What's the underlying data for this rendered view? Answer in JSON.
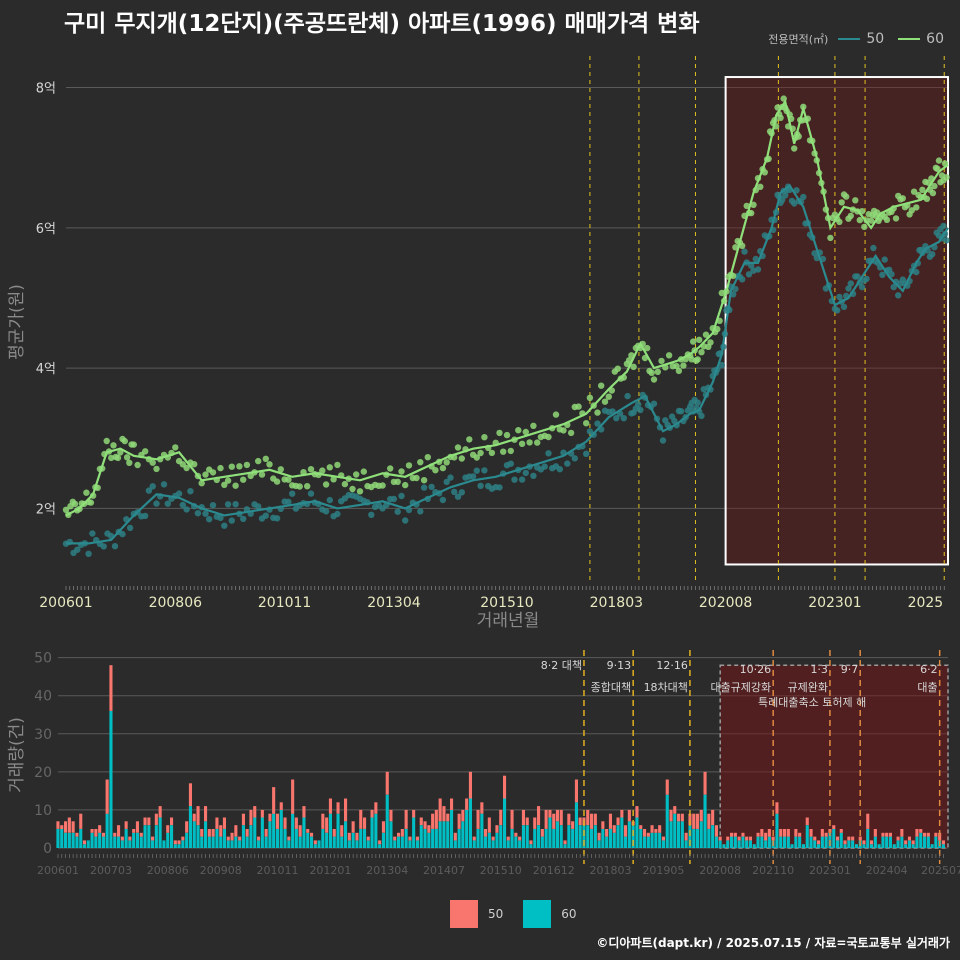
{
  "title": "구미 무지개(12단지)(주공뜨란체) 아파트(1996) 매매가격 변화",
  "legend": {
    "title": "전용면적(㎡)",
    "items": [
      {
        "label": "50",
        "color": "#2a8a8f"
      },
      {
        "label": "60",
        "color": "#8fe07a"
      }
    ]
  },
  "bar_legend": [
    {
      "label": "50",
      "color": "#f8766d"
    },
    {
      "label": "60",
      "color": "#00bfc4"
    }
  ],
  "footer": "©디아파트(dapt.kr) / 2025.07.15 / 자료=국토교통부 실거래가",
  "policies": [
    {
      "date": "2017.08",
      "label": "8·2 대책",
      "label2": ""
    },
    {
      "date": "2018.09",
      "label": "9·13",
      "label2": "종합대책"
    },
    {
      "date": "2019.12",
      "label": "12·16",
      "label2": "18차대책"
    },
    {
      "date": "2021.10",
      "label": "10·26",
      "label2": "대출규제강화"
    },
    {
      "date": "2023.01",
      "label": "1·3",
      "label2": "규제완화"
    },
    {
      "date": "2023.09",
      "label": "9·7",
      "label2": "특례대출축소 토허제 해"
    },
    {
      "date": "2025.06",
      "label": "6·2",
      "label2": "대출"
    }
  ],
  "chart_data": [
    {
      "type": "line",
      "title": "구미 무지개(12단지)(주공뜨란체) 아파트(1996) 매매가격 변화",
      "xlabel": "거래년월",
      "ylabel": "평균가(원)",
      "x_ticks": [
        "200601",
        "200806",
        "201011",
        "201304",
        "201510",
        "201803",
        "202008",
        "202301",
        "2025"
      ],
      "y_ticks": [
        "2억",
        "4억",
        "6억",
        "8억"
      ],
      "ylim": [
        0.95,
        8.45
      ],
      "y_unit": "억",
      "highlight_range": [
        "2020.08",
        "2025.07"
      ],
      "series": [
        {
          "name": "50",
          "points": [
            [
              2006.0,
              1.5
            ],
            [
              2006.5,
              1.5
            ],
            [
              2007.0,
              1.55
            ],
            [
              2007.5,
              1.9
            ],
            [
              2008.0,
              2.2
            ],
            [
              2008.5,
              2.15
            ],
            [
              2009.0,
              2.0
            ],
            [
              2009.5,
              1.9
            ],
            [
              2010.0,
              1.95
            ],
            [
              2010.5,
              2.0
            ],
            [
              2011.0,
              2.05
            ],
            [
              2011.5,
              2.1
            ],
            [
              2012.0,
              2.0
            ],
            [
              2012.5,
              2.05
            ],
            [
              2013.0,
              2.1
            ],
            [
              2013.5,
              2.0
            ],
            [
              2014.0,
              2.15
            ],
            [
              2014.5,
              2.3
            ],
            [
              2015.0,
              2.4
            ],
            [
              2015.5,
              2.45
            ],
            [
              2016.0,
              2.55
            ],
            [
              2016.5,
              2.65
            ],
            [
              2017.0,
              2.75
            ],
            [
              2017.5,
              2.95
            ],
            [
              2018.0,
              3.3
            ],
            [
              2018.5,
              3.5
            ],
            [
              2018.8,
              3.6
            ],
            [
              2019.2,
              3.1
            ],
            [
              2019.5,
              3.2
            ],
            [
              2019.8,
              3.35
            ],
            [
              2020.0,
              3.4
            ],
            [
              2020.3,
              3.8
            ],
            [
              2020.5,
              4.2
            ],
            [
              2020.7,
              5.1
            ],
            [
              2021.0,
              5.5
            ],
            [
              2021.3,
              5.5
            ],
            [
              2021.6,
              6.0
            ],
            [
              2021.8,
              6.5
            ],
            [
              2022.0,
              6.6
            ],
            [
              2022.3,
              6.3
            ],
            [
              2022.6,
              5.7
            ],
            [
              2023.0,
              4.9
            ],
            [
              2023.3,
              5.0
            ],
            [
              2023.6,
              5.3
            ],
            [
              2023.9,
              5.6
            ],
            [
              2024.2,
              5.3
            ],
            [
              2024.5,
              5.1
            ],
            [
              2024.8,
              5.5
            ],
            [
              2025.0,
              5.7
            ],
            [
              2025.3,
              5.8
            ],
            [
              2025.5,
              6.0
            ]
          ]
        },
        {
          "name": "60",
          "points": [
            [
              2006.0,
              1.9
            ],
            [
              2006.3,
              2.0
            ],
            [
              2006.6,
              2.2
            ],
            [
              2006.9,
              2.8
            ],
            [
              2007.2,
              2.85
            ],
            [
              2007.5,
              2.75
            ],
            [
              2008.0,
              2.7
            ],
            [
              2008.5,
              2.8
            ],
            [
              2009.0,
              2.4
            ],
            [
              2009.5,
              2.45
            ],
            [
              2010.0,
              2.5
            ],
            [
              2010.5,
              2.55
            ],
            [
              2011.0,
              2.45
            ],
            [
              2011.5,
              2.5
            ],
            [
              2012.0,
              2.45
            ],
            [
              2012.5,
              2.4
            ],
            [
              2013.0,
              2.5
            ],
            [
              2013.5,
              2.45
            ],
            [
              2014.0,
              2.6
            ],
            [
              2014.5,
              2.75
            ],
            [
              2015.0,
              2.85
            ],
            [
              2015.5,
              2.9
            ],
            [
              2016.0,
              3.0
            ],
            [
              2016.5,
              3.1
            ],
            [
              2017.0,
              3.2
            ],
            [
              2017.5,
              3.35
            ],
            [
              2018.0,
              3.7
            ],
            [
              2018.4,
              3.95
            ],
            [
              2018.7,
              4.35
            ],
            [
              2019.0,
              4.0
            ],
            [
              2019.5,
              4.1
            ],
            [
              2019.8,
              4.2
            ],
            [
              2020.0,
              4.3
            ],
            [
              2020.3,
              4.5
            ],
            [
              2020.6,
              5.1
            ],
            [
              2020.9,
              5.8
            ],
            [
              2021.2,
              6.5
            ],
            [
              2021.5,
              7.0
            ],
            [
              2021.7,
              7.6
            ],
            [
              2021.9,
              7.8
            ],
            [
              2022.1,
              7.2
            ],
            [
              2022.3,
              7.7
            ],
            [
              2022.6,
              7.0
            ],
            [
              2022.9,
              6.0
            ],
            [
              2023.2,
              6.3
            ],
            [
              2023.5,
              6.25
            ],
            [
              2023.8,
              6.0
            ],
            [
              2024.0,
              6.2
            ],
            [
              2024.3,
              6.3
            ],
            [
              2024.6,
              6.35
            ],
            [
              2024.9,
              6.4
            ],
            [
              2025.1,
              6.6
            ],
            [
              2025.3,
              6.8
            ],
            [
              2025.5,
              6.9
            ]
          ]
        }
      ]
    },
    {
      "type": "bar",
      "ylabel": "거래량(건)",
      "x_ticks": [
        "200601",
        "200703",
        "200806",
        "200908",
        "201011",
        "201201",
        "201304",
        "201407",
        "201510",
        "201612",
        "201803",
        "201905",
        "202008",
        "202110",
        "202301",
        "202404",
        "202507"
      ],
      "y_ticks": [
        "0",
        "10",
        "20",
        "30",
        "40",
        "50"
      ],
      "ylim": [
        0,
        52
      ],
      "highlight_range": [
        "2020.08",
        "2025.07"
      ],
      "series": [
        {
          "name": "60",
          "monthly": "approx"
        },
        {
          "name": "50",
          "monthly": "approx"
        }
      ],
      "notable": [
        {
          "period": "2007.03",
          "total": 48,
          "series_60": 36
        },
        {
          "period": "2013.04",
          "total": 20,
          "series_60": 14
        },
        {
          "period": "2017.06",
          "total": 18,
          "series_60": 12
        },
        {
          "period": "2020.04",
          "total": 20,
          "series_60": 14
        }
      ]
    }
  ]
}
